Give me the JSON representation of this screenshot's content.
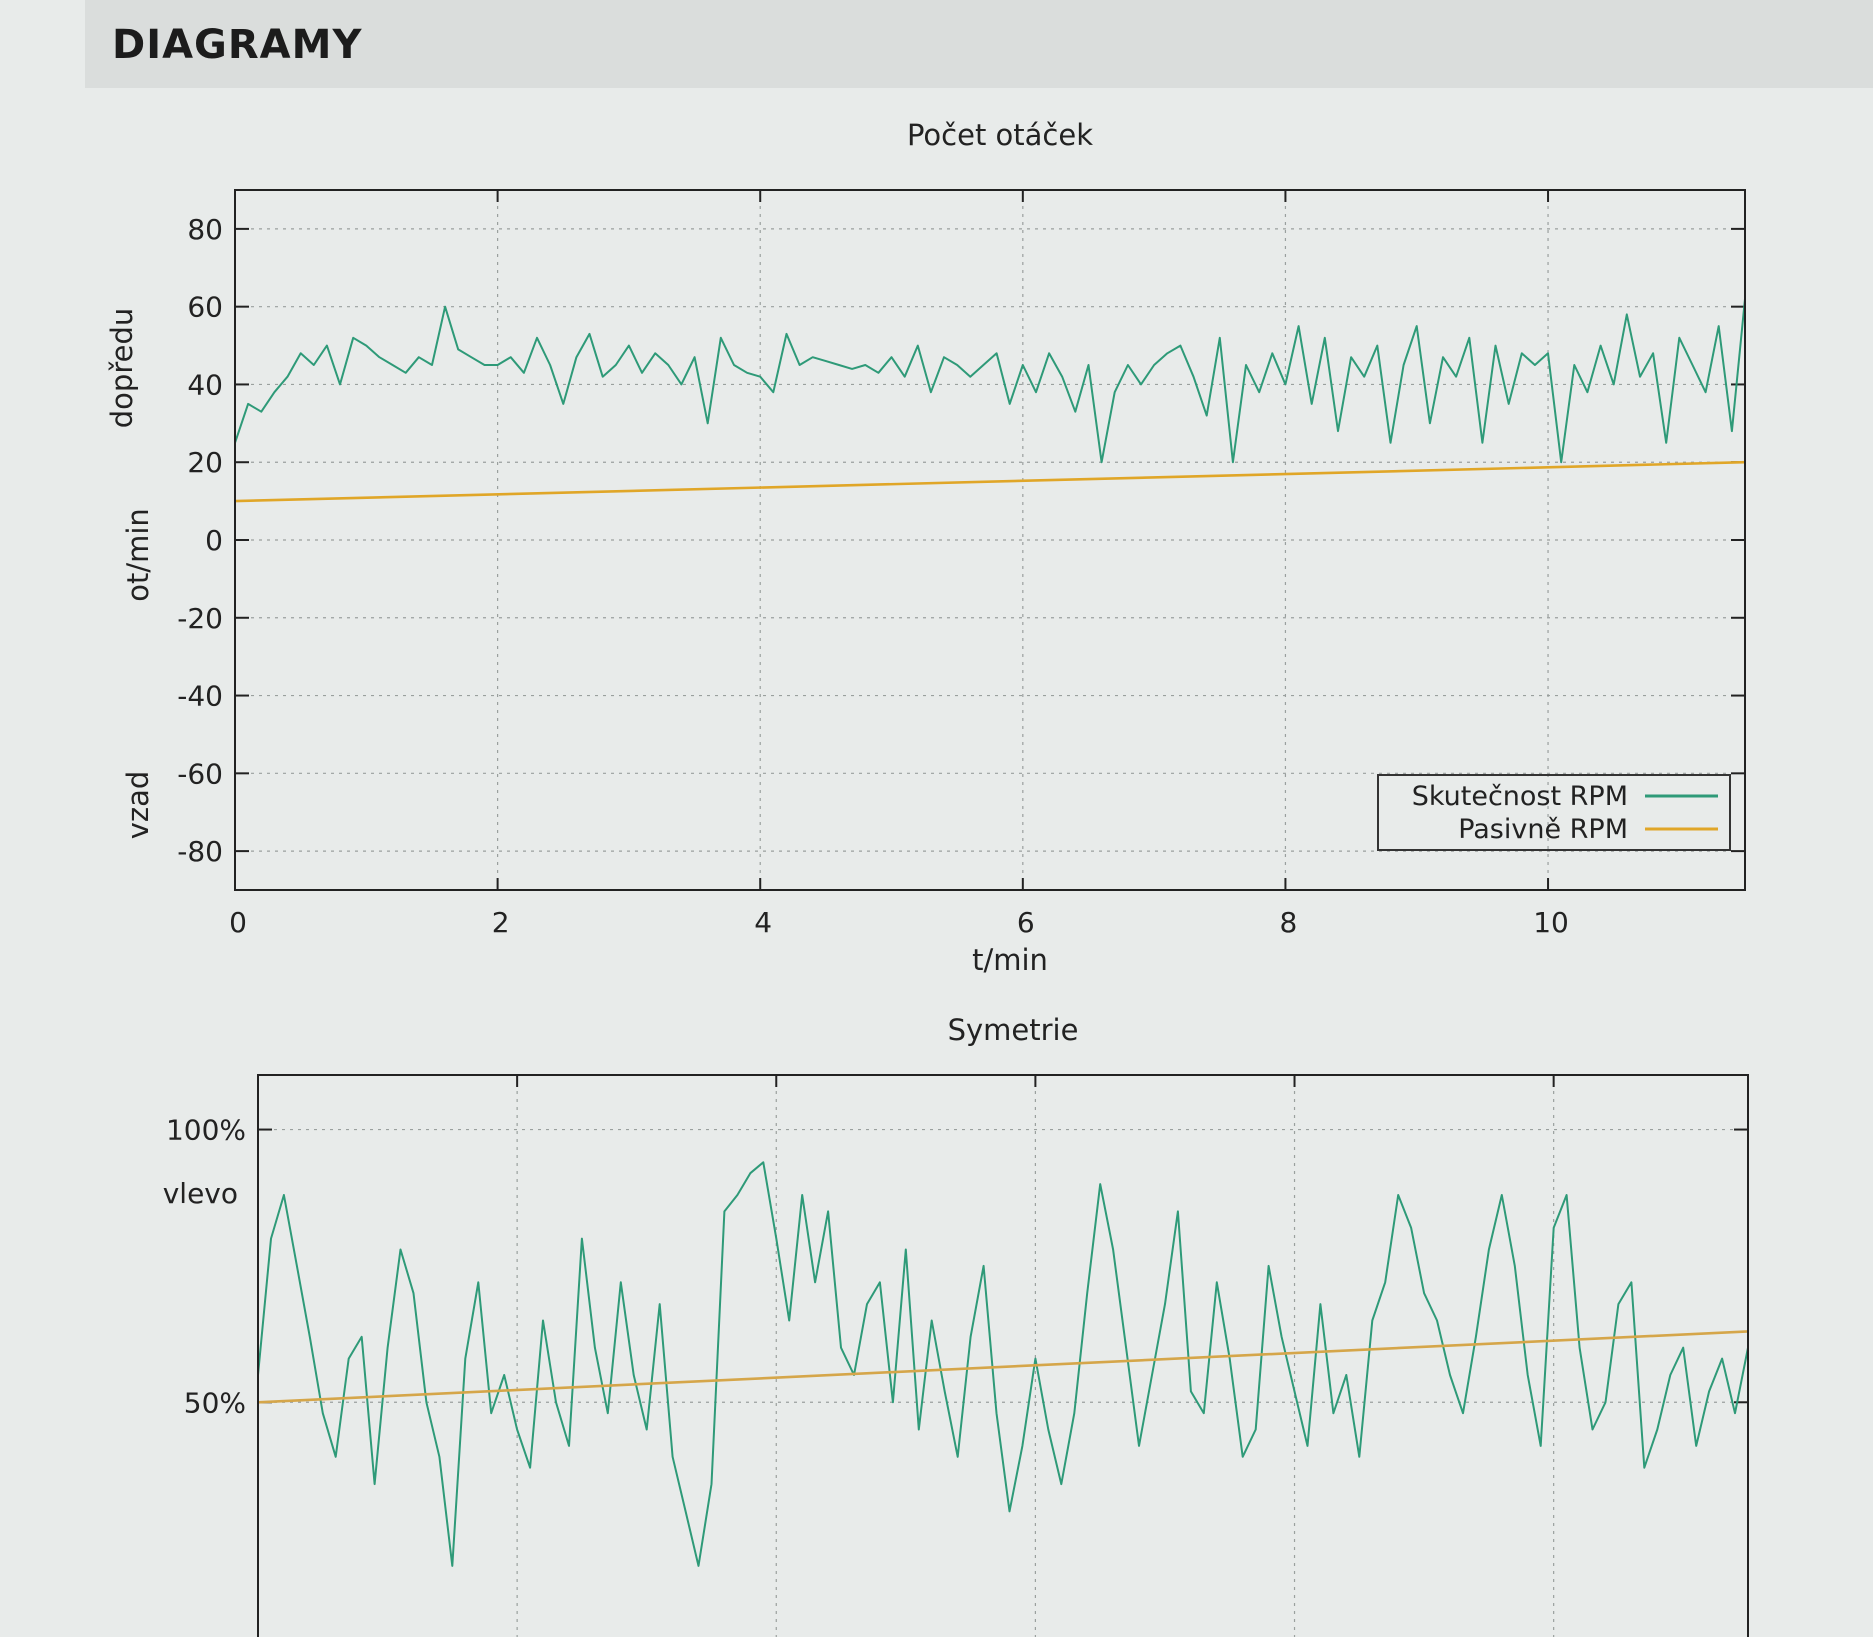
{
  "page": {
    "heading": "DIAGRAMY"
  },
  "chart_data": [
    {
      "type": "line",
      "title": "Počet otáček",
      "xlabel": "t/min",
      "ylabel": "ot/min",
      "ylabel_top": "dopředu",
      "ylabel_bottom": "vzad",
      "xlim": [
        0,
        11.5
      ],
      "ylim": [
        -90,
        90
      ],
      "xticks": [
        "0",
        "2",
        "4",
        "6",
        "8",
        "10"
      ],
      "xtick_values": [
        0,
        2,
        4,
        6,
        8,
        10
      ],
      "yticks": [
        "80",
        "60",
        "40",
        "20",
        "0",
        "-20",
        "-40",
        "-60",
        "-80"
      ],
      "ytick_values": [
        80,
        60,
        40,
        20,
        0,
        -20,
        -40,
        -60,
        -80
      ],
      "grid": true,
      "legend_position": "bottom-right",
      "series": [
        {
          "name": "Skutečnost RPM",
          "color": "#2e9a78",
          "x": [
            0,
            0.1,
            0.2,
            0.3,
            0.4,
            0.5,
            0.6,
            0.7,
            0.8,
            0.9,
            1.0,
            1.1,
            1.2,
            1.3,
            1.4,
            1.5,
            1.6,
            1.7,
            1.8,
            1.9,
            2.0,
            2.1,
            2.2,
            2.3,
            2.4,
            2.5,
            2.6,
            2.7,
            2.8,
            2.9,
            3.0,
            3.1,
            3.2,
            3.3,
            3.4,
            3.5,
            3.6,
            3.7,
            3.8,
            3.9,
            4.0,
            4.1,
            4.2,
            4.3,
            4.4,
            4.5,
            4.6,
            4.7,
            4.8,
            4.9,
            5.0,
            5.1,
            5.2,
            5.3,
            5.4,
            5.5,
            5.6,
            5.7,
            5.8,
            5.9,
            6.0,
            6.1,
            6.2,
            6.3,
            6.4,
            6.5,
            6.6,
            6.7,
            6.8,
            6.9,
            7.0,
            7.1,
            7.2,
            7.3,
            7.4,
            7.5,
            7.6,
            7.7,
            7.8,
            7.9,
            8.0,
            8.1,
            8.2,
            8.3,
            8.4,
            8.5,
            8.6,
            8.7,
            8.8,
            8.9,
            9.0,
            9.1,
            9.2,
            9.3,
            9.4,
            9.5,
            9.6,
            9.7,
            9.8,
            9.9,
            10.0,
            10.1,
            10.2,
            10.3,
            10.4,
            10.5,
            10.6,
            10.7,
            10.8,
            10.9,
            11.0,
            11.1,
            11.2,
            11.3,
            11.4,
            11.5
          ],
          "values": [
            25,
            35,
            33,
            38,
            42,
            48,
            45,
            50,
            40,
            52,
            50,
            47,
            45,
            43,
            47,
            45,
            60,
            49,
            47,
            45,
            45,
            47,
            43,
            52,
            45,
            35,
            47,
            53,
            42,
            45,
            50,
            43,
            48,
            45,
            40,
            47,
            30,
            52,
            45,
            43,
            42,
            38,
            53,
            45,
            47,
            46,
            45,
            44,
            45,
            43,
            47,
            42,
            50,
            38,
            47,
            45,
            42,
            45,
            48,
            35,
            45,
            38,
            48,
            42,
            33,
            45,
            20,
            38,
            45,
            40,
            45,
            48,
            50,
            42,
            32,
            52,
            20,
            45,
            38,
            48,
            40,
            55,
            35,
            52,
            28,
            47,
            42,
            50,
            25,
            45,
            55,
            30,
            47,
            42,
            52,
            25,
            50,
            35,
            48,
            45,
            48,
            20,
            45,
            38,
            50,
            40,
            58,
            42,
            48,
            25,
            52,
            45,
            38,
            55,
            28,
            62
          ]
        },
        {
          "name": "Pasivně RPM",
          "color": "#e0a628",
          "x": [
            0,
            11.5
          ],
          "values": [
            10,
            20
          ]
        }
      ]
    },
    {
      "type": "line",
      "title": "Symetrie",
      "xlim": [
        0,
        11.5
      ],
      "ylim": [
        0,
        110
      ],
      "yticks": [
        "100%",
        "50%"
      ],
      "ytick_values": [
        100,
        50
      ],
      "ytick_sublabel": "vlevo",
      "grid": true,
      "series": [
        {
          "name": "",
          "color": "#2e9a78",
          "x": [
            0,
            0.1,
            0.2,
            0.3,
            0.4,
            0.5,
            0.6,
            0.7,
            0.8,
            0.9,
            1.0,
            1.1,
            1.2,
            1.3,
            1.4,
            1.5,
            1.6,
            1.7,
            1.8,
            1.9,
            2.0,
            2.1,
            2.2,
            2.3,
            2.4,
            2.5,
            2.6,
            2.7,
            2.8,
            2.9,
            3.0,
            3.1,
            3.2,
            3.3,
            3.4,
            3.5,
            3.6,
            3.7,
            3.8,
            3.9,
            4.0,
            4.1,
            4.2,
            4.3,
            4.4,
            4.5,
            4.6,
            4.7,
            4.8,
            4.9,
            5.0,
            5.1,
            5.2,
            5.3,
            5.4,
            5.5,
            5.6,
            5.7,
            5.8,
            5.9,
            6.0,
            6.1,
            6.2,
            6.3,
            6.4,
            6.5,
            6.6,
            6.7,
            6.8,
            6.9,
            7.0,
            7.1,
            7.2,
            7.3,
            7.4,
            7.5,
            7.6,
            7.7,
            7.8,
            7.9,
            8.0,
            8.1,
            8.2,
            8.3,
            8.4,
            8.5,
            8.6,
            8.7,
            8.8,
            8.9,
            9.0,
            9.1,
            9.2,
            9.3,
            9.4,
            9.5,
            9.6,
            9.7,
            9.8,
            9.9,
            10.0,
            10.1,
            10.2,
            10.3,
            10.4,
            10.5,
            10.6,
            10.7,
            10.8,
            10.9,
            11.0,
            11.1,
            11.2,
            11.3,
            11.4,
            11.5
          ],
          "values": [
            55,
            80,
            88,
            75,
            62,
            48,
            40,
            58,
            62,
            35,
            60,
            78,
            70,
            50,
            40,
            20,
            58,
            72,
            48,
            55,
            45,
            38,
            65,
            50,
            42,
            80,
            60,
            48,
            72,
            55,
            45,
            68,
            40,
            30,
            20,
            35,
            85,
            88,
            92,
            94,
            80,
            65,
            88,
            72,
            85,
            60,
            55,
            68,
            72,
            50,
            78,
            45,
            65,
            52,
            40,
            62,
            75,
            48,
            30,
            42,
            58,
            45,
            35,
            48,
            70,
            90,
            78,
            60,
            42,
            55,
            68,
            85,
            52,
            48,
            72,
            58,
            40,
            45,
            75,
            62,
            52,
            42,
            68,
            48,
            55,
            40,
            65,
            72,
            88,
            82,
            70,
            65,
            55,
            48,
            62,
            78,
            88,
            75,
            55,
            42,
            82,
            88,
            60,
            45,
            50,
            68,
            72,
            38,
            45,
            55,
            60,
            42,
            52,
            58,
            48,
            60
          ]
        },
        {
          "name": "",
          "color": "#d5a64a",
          "x": [
            0,
            11.5
          ],
          "values": [
            50,
            63
          ]
        }
      ]
    }
  ]
}
